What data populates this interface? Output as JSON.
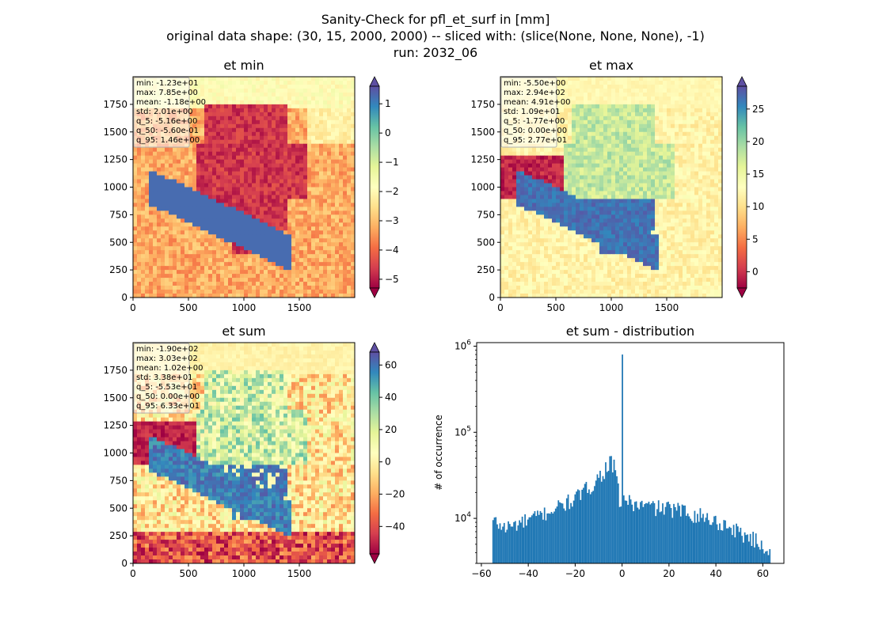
{
  "suptitle": [
    "Sanity-Check for pfl_et_surf in [mm]",
    "original data shape: (30, 15, 2000, 2000) -- sliced with: (slice(None, None, None), -1)",
    "run: 2032_06"
  ],
  "chart_data": [
    {
      "type": "heatmap",
      "title": "et min",
      "colormap": "Spectral",
      "xlim": [
        0,
        2000
      ],
      "ylim": [
        0,
        2000
      ],
      "xticks": [
        0,
        500,
        1000,
        1500
      ],
      "yticks": [
        0,
        250,
        500,
        750,
        1000,
        1250,
        1500,
        1750
      ],
      "colorbar": {
        "range": [
          -5.3,
          1.6
        ],
        "ticks": [
          1,
          0,
          -1,
          -2,
          -3,
          -4,
          -5
        ],
        "extend": "both"
      },
      "stats": [
        "min: -1.23e+01",
        "max: 7.85e+00",
        "mean: -1.18e+00",
        "std: 2.01e+00",
        "q_5: -5.16e+00",
        "q_50: -5.60e-01",
        "q_95: 1.46e+00"
      ]
    },
    {
      "type": "heatmap",
      "title": "et max",
      "colormap": "Spectral",
      "xlim": [
        0,
        2000
      ],
      "ylim": [
        0,
        2000
      ],
      "xticks": [
        0,
        500,
        1000,
        1500
      ],
      "yticks": [
        0,
        250,
        500,
        750,
        1000,
        1250,
        1500,
        1750
      ],
      "colorbar": {
        "range": [
          -2.5,
          28.5
        ],
        "ticks": [
          25,
          20,
          15,
          10,
          5,
          0
        ],
        "extend": "both"
      },
      "stats": [
        "min: -5.50e+00",
        "max: 2.94e+02",
        "mean: 4.91e+00",
        "std: 1.09e+01",
        "q_5: -1.77e+00",
        "q_50: 0.00e+00",
        "q_95: 2.77e+01"
      ]
    },
    {
      "type": "heatmap",
      "title": "et sum",
      "colormap": "Spectral",
      "xlim": [
        0,
        2000
      ],
      "ylim": [
        0,
        2000
      ],
      "xticks": [
        0,
        500,
        1000,
        1500
      ],
      "yticks": [
        0,
        250,
        500,
        750,
        1000,
        1250,
        1500,
        1750
      ],
      "colorbar": {
        "range": [
          -57,
          68
        ],
        "ticks": [
          60,
          40,
          20,
          0,
          -20,
          -40
        ],
        "extend": "both"
      },
      "stats": [
        "min: -1.90e+02",
        "max: 3.03e+02",
        "mean: 1.02e+00",
        "std: 3.38e+01",
        "q_5: -5.53e+01",
        "q_50: 0.00e+00",
        "q_95: 6.33e+01"
      ]
    },
    {
      "type": "bar",
      "title": "et sum - distribution",
      "ylabel": "# of occurrence",
      "xlabel": "",
      "yscale": "log",
      "xlim": [
        -62,
        69
      ],
      "ylim": [
        3000,
        1100000
      ],
      "xticks": [
        -60,
        -40,
        -20,
        0,
        20,
        40,
        60
      ],
      "yticks": [
        {
          "value": 10000,
          "label": "10^4"
        },
        {
          "value": 100000,
          "label": "10^5"
        },
        {
          "value": 1000000,
          "label": "10^6"
        }
      ],
      "color": "#1f77b4",
      "bins": {
        "start": -55.3,
        "end": 63.3,
        "count": 200
      },
      "profile_points": [
        [
          -55.3,
          9500
        ],
        [
          -50,
          7800
        ],
        [
          -40,
          9500
        ],
        [
          -30,
          12500
        ],
        [
          -20,
          17000
        ],
        [
          -12,
          26000
        ],
        [
          -8,
          35000
        ],
        [
          -5,
          46000
        ],
        [
          -3,
          38000
        ],
        [
          -1,
          16000
        ],
        [
          0,
          800000
        ],
        [
          0.6,
          17000
        ],
        [
          5,
          14500
        ],
        [
          15,
          13500
        ],
        [
          25,
          12500
        ],
        [
          35,
          10500
        ],
        [
          45,
          8200
        ],
        [
          55,
          6000
        ],
        [
          63.3,
          4200
        ]
      ]
    }
  ]
}
